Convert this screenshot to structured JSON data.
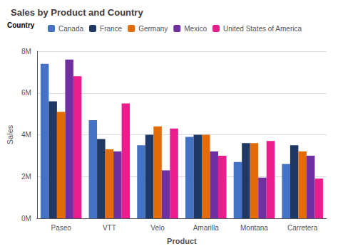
{
  "chart_data": {
    "type": "bar",
    "title": "Sales by Product and Country",
    "xlabel": "Product",
    "ylabel": "Sales",
    "legend_title": "Country",
    "categories": [
      "Paseo",
      "VTT",
      "Velo",
      "Amarilla",
      "Montana",
      "Carretera"
    ],
    "series": [
      {
        "name": "Canada",
        "color": "#4472C4",
        "values": [
          7400000,
          4700000,
          3500000,
          3900000,
          2700000,
          2600000
        ]
      },
      {
        "name": "France",
        "color": "#1F3864",
        "values": [
          5600000,
          3800000,
          4000000,
          4000000,
          3600000,
          3500000
        ]
      },
      {
        "name": "Germany",
        "color": "#E36C09",
        "values": [
          5100000,
          3300000,
          4400000,
          4000000,
          3600000,
          3200000
        ]
      },
      {
        "name": "Mexico",
        "color": "#7030A0",
        "values": [
          7600000,
          3200000,
          2300000,
          3200000,
          1950000,
          3000000
        ]
      },
      {
        "name": "United States of America",
        "color": "#E91E8C",
        "values": [
          6800000,
          5500000,
          4300000,
          3000000,
          3700000,
          1900000
        ]
      }
    ],
    "ylim": [
      0,
      8000000
    ],
    "yticks": [
      {
        "value": 0,
        "label": "0M"
      },
      {
        "value": 2000000,
        "label": "2M"
      },
      {
        "value": 4000000,
        "label": "4M"
      },
      {
        "value": 6000000,
        "label": "6M"
      },
      {
        "value": 8000000,
        "label": "8M"
      }
    ],
    "grid": true,
    "legend": "top-left"
  }
}
